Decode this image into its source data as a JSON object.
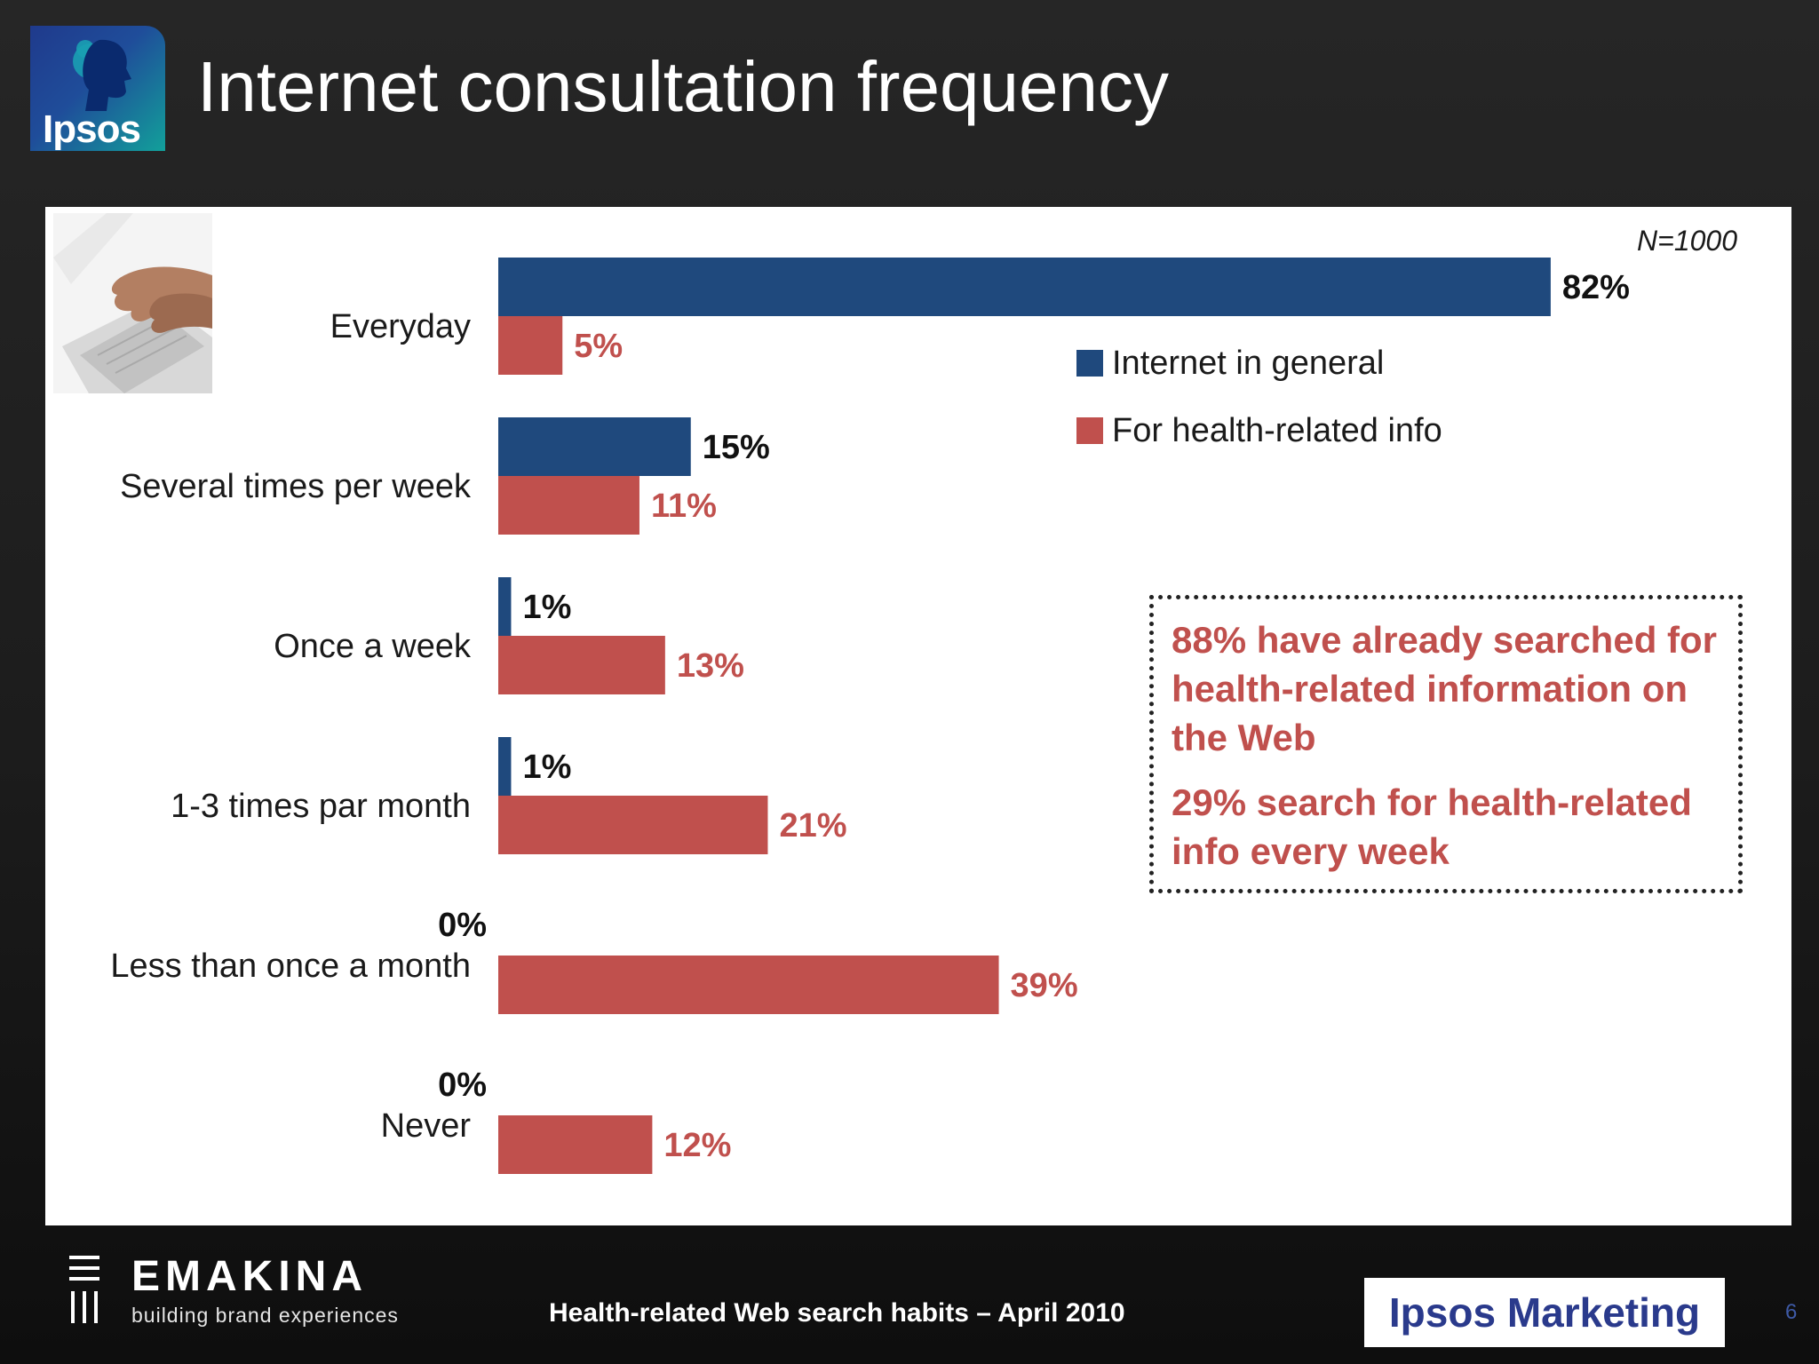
{
  "slide": {
    "title": "Internet consultation frequency",
    "logo_text": "Ipsos",
    "sample_size": "N=1000"
  },
  "chart_data": {
    "type": "bar",
    "orientation": "horizontal",
    "categories": [
      "Everyday",
      "Several times per week",
      "Once a week",
      "1-3 times par month",
      "Less than once a month",
      "Never"
    ],
    "series": [
      {
        "name": "Internet in general",
        "color": "#1f497d",
        "values": [
          82,
          15,
          1,
          1,
          0,
          0
        ],
        "labels": [
          "82%",
          "15%",
          "1%",
          "1%",
          "0%",
          "0%"
        ]
      },
      {
        "name": "For health-related info",
        "color": "#c0504d",
        "values": [
          5,
          11,
          13,
          21,
          39,
          12
        ],
        "labels": [
          "5%",
          "11%",
          "13%",
          "21%",
          "39%",
          "12%"
        ]
      }
    ],
    "xlim": [
      0,
      100
    ],
    "grid": false,
    "legend_position": "right"
  },
  "callout": {
    "line1": "88% have already searched for health-related information on the Web",
    "line2": "29% search for health-related info every week"
  },
  "footer": {
    "brand": "EMAKINA",
    "brand_tagline": "building brand experiences",
    "caption": "Health-related Web search habits – April 2010",
    "partner": "Ipsos Marketing",
    "page_number": "6"
  }
}
